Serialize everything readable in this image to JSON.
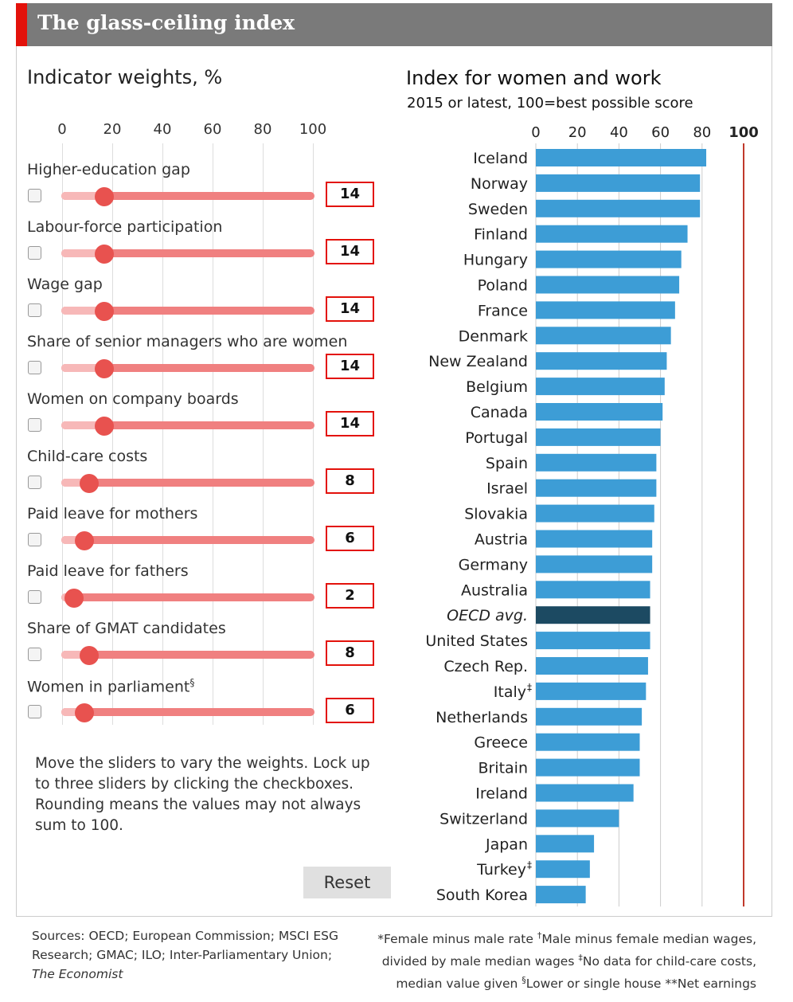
{
  "title": "The glass-ceiling index",
  "left_panel": {
    "heading": "Indicator weights, %",
    "scale_ticks": [
      "0",
      "20",
      "40",
      "60",
      "80",
      "100"
    ],
    "indicators": [
      {
        "label": "Higher-education gap",
        "weight": 14
      },
      {
        "label": "Labour-force participation",
        "weight": 14
      },
      {
        "label": "Wage gap",
        "weight": 14
      },
      {
        "label": "Share of senior managers who are women",
        "weight": 14
      },
      {
        "label": "Women on company boards",
        "weight": 14
      },
      {
        "label": "Child-care costs",
        "weight": 8
      },
      {
        "label": "Paid leave for mothers",
        "weight": 6
      },
      {
        "label": "Paid leave for fathers",
        "weight": 2
      },
      {
        "label": "Share of GMAT candidates",
        "weight": 8
      },
      {
        "label": "Women in parliament",
        "weight": 6,
        "footnote_mark": "§"
      }
    ],
    "instructions": "Move the sliders to vary the weights. Lock up to three sliders by clicking the checkboxes. Rounding means the values may not always sum to 100.",
    "reset_label": "Reset"
  },
  "colors": {
    "bar": "#3d9dd6",
    "oecd_bar": "#1c4a62",
    "reference_line": "#c0392b",
    "slider": "#e8524f",
    "accent": "#e3120b"
  },
  "chart_data": {
    "type": "bar",
    "orientation": "horizontal",
    "title": "Index for women and work",
    "subtitle": "2015 or latest, 100=best possible score",
    "xlim": [
      0,
      100
    ],
    "x_ticks": [
      "0",
      "20",
      "40",
      "60",
      "80",
      "100"
    ],
    "reference_value": 100,
    "categories": [
      "Iceland",
      "Norway",
      "Sweden",
      "Finland",
      "Hungary",
      "Poland",
      "France",
      "Denmark",
      "New Zealand",
      "Belgium",
      "Canada",
      "Portugal",
      "Spain",
      "Israel",
      "Slovakia",
      "Austria",
      "Germany",
      "Australia",
      "OECD avg.",
      "United States",
      "Czech Rep.",
      "Italy",
      "Netherlands",
      "Greece",
      "Britain",
      "Ireland",
      "Switzerland",
      "Japan",
      "Turkey",
      "South Korea"
    ],
    "category_marks": {
      "Italy": "‡",
      "Turkey": "‡"
    },
    "highlight": "OECD avg.",
    "values": [
      82,
      79,
      79,
      73,
      70,
      69,
      67,
      65,
      63,
      62,
      61,
      60,
      58,
      58,
      57,
      56,
      56,
      55,
      55,
      55,
      54,
      53,
      51,
      50,
      50,
      47,
      40,
      28,
      26,
      24
    ]
  },
  "footer": {
    "sources_line1": "Sources: OECD; European Commission; MSCI ESG",
    "sources_line2": "Research; GMAC; ILO; Inter-Parliamentary Union;",
    "sources_line3": "The Economist",
    "notes_line1_a": "*Female minus male rate ",
    "notes_mark_dagger": "†",
    "notes_line1_b": "Male minus female median wages,",
    "notes_line2_a": "divided by male median wages ",
    "notes_mark_ddagger": "‡",
    "notes_line2_b": "No data for child-care costs,",
    "notes_line3_a": "median value given ",
    "notes_mark_section": "§",
    "notes_line3_b": "Lower or single house **Net earnings"
  }
}
